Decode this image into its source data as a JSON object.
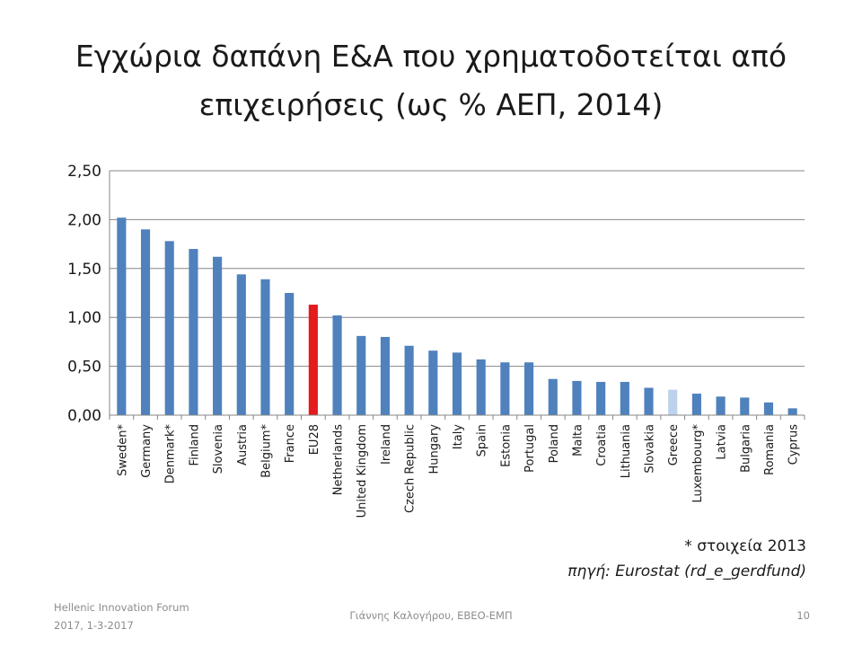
{
  "slide": {
    "title_line1": "Εγχώρια δαπάνη Ε&Α που χρηματοδοτείται από",
    "title_line2": "επιχειρήσεις (ως % ΑΕΠ, 2014)",
    "note": "* στοιχεία 2013",
    "source": "πηγή: Eurostat (rd_e_gerdfund)",
    "footer_left_line1": "Hellenic Innovation Forum",
    "footer_left_line2": "2017, 1-3-2017",
    "footer_center": "Γιάννης Καλογήρου, ΕΒΕΟ-ΕΜΠ",
    "page_number": "10"
  },
  "colors": {
    "default_bar": "#4f81bd",
    "eu28_bar": "#e41a1c",
    "greece_bar": "#bcd2ec",
    "gridline": "#868686"
  },
  "chart_data": {
    "type": "bar",
    "title": "Εγχώρια δαπάνη Ε&Α που χρηματοδοτείται από επιχειρήσεις (ως % ΑΕΠ, 2014)",
    "xlabel": "",
    "ylabel": "",
    "ylim": [
      0,
      2.5
    ],
    "yticks": [
      "0,00",
      "0,50",
      "1,00",
      "1,50",
      "2,00",
      "2,50"
    ],
    "grid": true,
    "legend": "none",
    "categories": [
      "Sweden*",
      "Germany",
      "Denmark*",
      "Finland",
      "Slovenia",
      "Austria",
      "Belgium*",
      "France",
      "EU28",
      "Netherlands",
      "United Kingdom",
      "Ireland",
      "Czech Republic",
      "Hungary",
      "Italy",
      "Spain",
      "Estonia",
      "Portugal",
      "Poland",
      "Malta",
      "Croatia",
      "Lithuania",
      "Slovakia",
      "Greece",
      "Luxembourg*",
      "Latvia",
      "Bulgaria",
      "Romania",
      "Cyprus"
    ],
    "values": [
      2.02,
      1.9,
      1.78,
      1.7,
      1.62,
      1.44,
      1.39,
      1.25,
      1.13,
      1.02,
      0.81,
      0.8,
      0.71,
      0.66,
      0.64,
      0.57,
      0.54,
      0.54,
      0.37,
      0.35,
      0.34,
      0.34,
      0.28,
      0.26,
      0.22,
      0.19,
      0.18,
      0.13,
      0.07
    ],
    "highlight": {
      "EU28": "eu28_bar",
      "Greece": "greece_bar"
    }
  }
}
